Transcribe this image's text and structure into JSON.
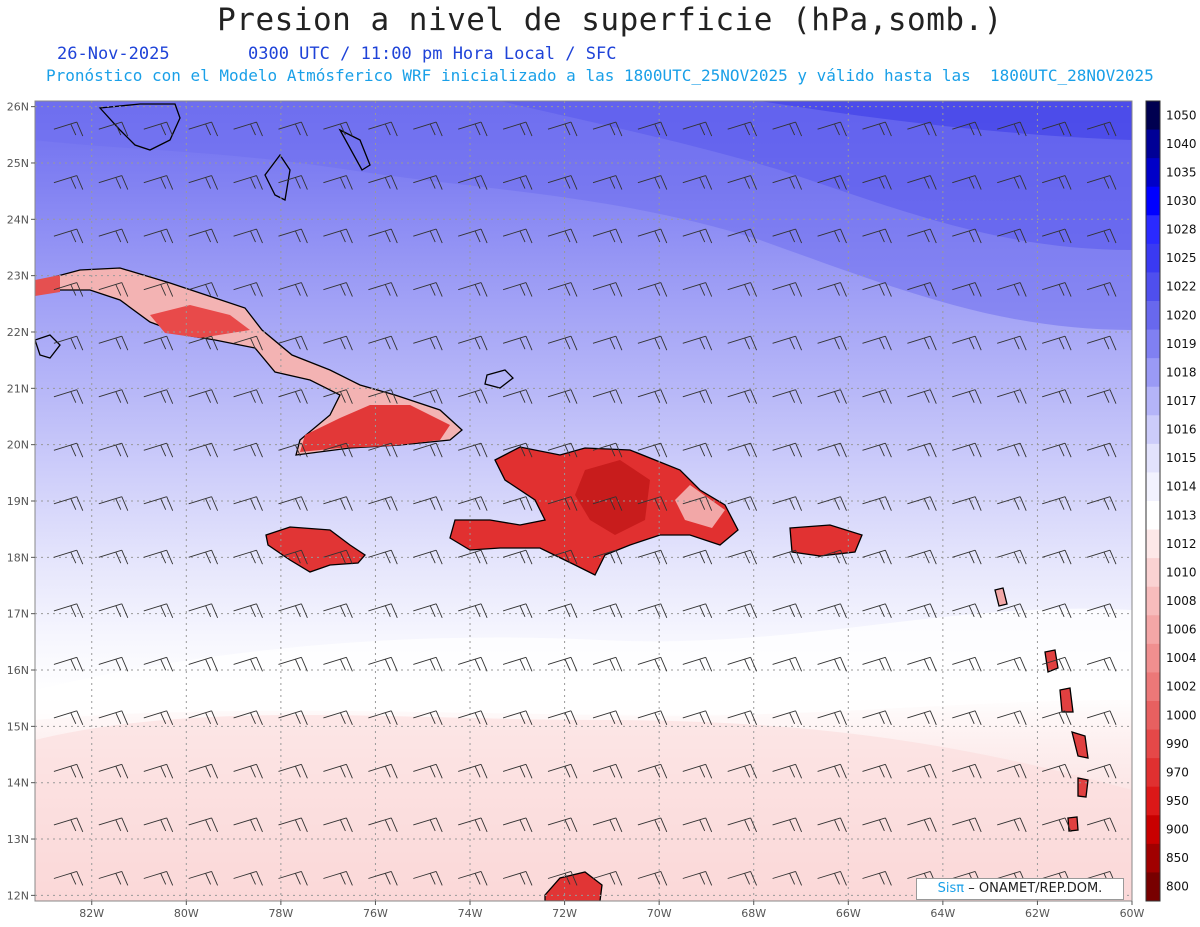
{
  "header": {
    "title": "Presion a nivel de superficie (hPa,somb.)",
    "date": "26-Nov-2025",
    "time_info": "0300 UTC / 11:00 pm Hora Local / SFC",
    "model_info": "Pronóstico con el Modelo Atmósferico WRF inicializado a las 1800UTC_25NOV2025 y válido hasta las  1800UTC_28NOV2025"
  },
  "credit": {
    "brand": "Sisπ",
    "text": "– ONAMET/REP.DOM."
  },
  "colors": {
    "title": "#222222",
    "date_line": "#1f43d8",
    "model_line": "#1aa0e8",
    "grid": "#999999"
  },
  "chart_data": {
    "type": "heatmap",
    "variable": "surface pressure (hPa) with wind barbs",
    "xlim": [
      -83.2,
      -60.0
    ],
    "ylim": [
      11.9,
      26.1
    ],
    "x_ticks": [
      "82W",
      "80W",
      "78W",
      "76W",
      "74W",
      "72W",
      "70W",
      "68W",
      "66W",
      "64W",
      "62W",
      "60W"
    ],
    "y_ticks": [
      "26N",
      "25N",
      "24N",
      "23N",
      "22N",
      "21N",
      "20N",
      "19N",
      "18N",
      "17N",
      "16N",
      "15N",
      "14N",
      "13N",
      "12N"
    ],
    "colorbar": {
      "labels": [
        "1050",
        "1040",
        "1035",
        "1030",
        "1028",
        "1025",
        "1022",
        "1020",
        "1019",
        "1018",
        "1017",
        "1016",
        "1015",
        "1014",
        "1013",
        "1012",
        "1010",
        "1008",
        "1006",
        "1004",
        "1002",
        "1000",
        "990",
        "970",
        "950",
        "900",
        "850",
        "800"
      ],
      "colors": [
        "#000050",
        "#000096",
        "#0000c8",
        "#0000ff",
        "#2a2aff",
        "#3a3af2",
        "#4f4fee",
        "#6868ee",
        "#8080f2",
        "#9a9af5",
        "#b4b4f8",
        "#ccccfa",
        "#e2e2fc",
        "#f2f2fe",
        "#ffffff",
        "#fde8e8",
        "#fad2d2",
        "#f7bcbc",
        "#f4a6a6",
        "#f08f8f",
        "#ec7878",
        "#e86060",
        "#e54848",
        "#e03030",
        "#dc1818",
        "#c80000",
        "#a00000",
        "#780000"
      ]
    },
    "pressure_bands": [
      {
        "lat_top": 26.1,
        "value": 1020
      },
      {
        "lat_top": 24.6,
        "value": 1019
      },
      {
        "lat_top": 23.0,
        "value": 1018
      },
      {
        "lat_top": 21.0,
        "value": 1017
      },
      {
        "lat_top": 19.6,
        "value": 1016
      },
      {
        "lat_top": 18.3,
        "value": 1015
      },
      {
        "lat_top": 17.2,
        "value": 1014
      },
      {
        "lat_top": 15.5,
        "value": 1013
      },
      {
        "lat_top": 14.2,
        "value": 1012
      }
    ],
    "wind": {
      "direction": "east-northeast",
      "typical_barb": "10-15 kt"
    }
  }
}
